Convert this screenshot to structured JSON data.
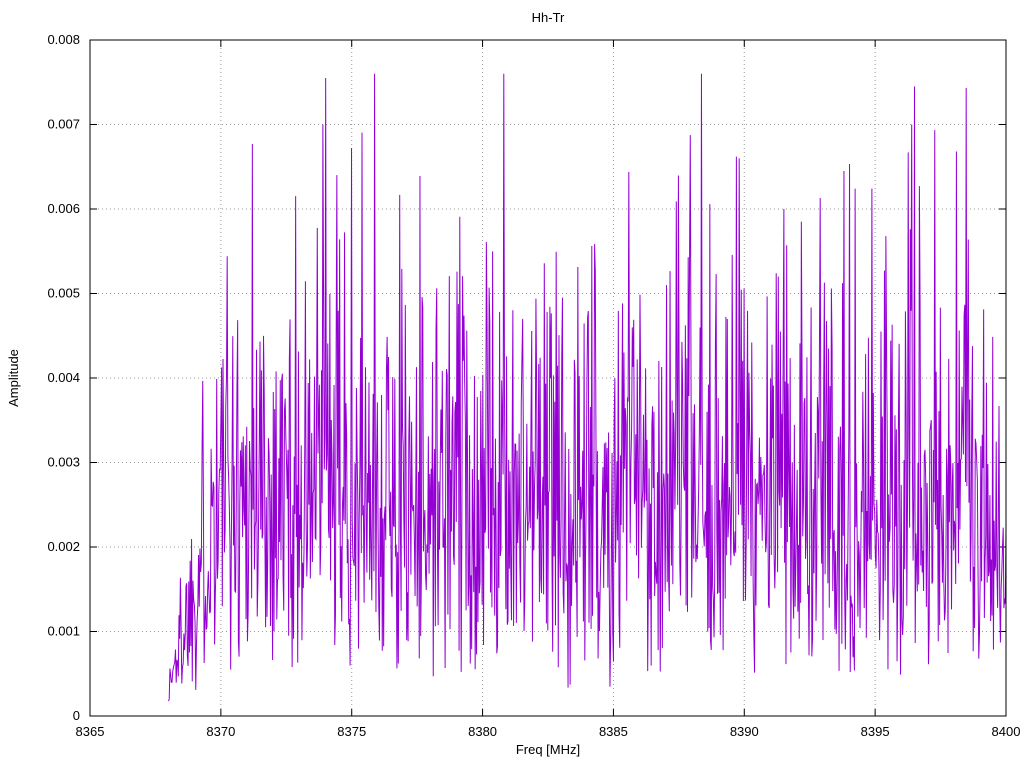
{
  "chart_data": {
    "type": "line",
    "title": "Hh-Tr",
    "xlabel": "Freq [MHz]",
    "ylabel": "Amplitude",
    "xlim": [
      8365,
      8400
    ],
    "ylim": [
      0,
      0.008
    ],
    "x_ticks": [
      8365,
      8370,
      8375,
      8380,
      8385,
      8390,
      8395,
      8400
    ],
    "x_tick_labels": [
      "8365",
      "8370",
      "8375",
      "8380",
      "8385",
      "8390",
      "8395",
      "8400"
    ],
    "y_ticks": [
      0,
      0.001,
      0.002,
      0.003,
      0.004,
      0.005,
      0.006,
      0.007,
      0.008
    ],
    "y_tick_labels": [
      "0",
      "0.001",
      "0.002",
      "0.003",
      "0.004",
      "0.005",
      "0.006",
      "0.007",
      "0.008"
    ],
    "grid": true,
    "legend": "none",
    "line_color": "#9400d3",
    "series_name": "Hh-Tr",
    "data_x_start": 8368.0,
    "data_x_end": 8400.0,
    "num_points": 1200,
    "noise_model": {
      "distribution": "rayleigh",
      "sigma": 0.002,
      "floor": 0.0002,
      "max": 0.0076,
      "seed": 1337,
      "ramp_in_end_x": 8369.8,
      "ramp_in_start_factor": 0.12,
      "taper_start_x": 8399.2,
      "taper_end_factor": 0.4
    },
    "notable_peaks": [
      {
        "x": 8374.0,
        "y": 0.00755
      },
      {
        "x": 8396.5,
        "y": 0.00745
      },
      {
        "x": 8396.4,
        "y": 0.007
      },
      {
        "x": 8371.2,
        "y": 0.00677
      },
      {
        "x": 8375.0,
        "y": 0.00672
      },
      {
        "x": 8398.1,
        "y": 0.00668
      },
      {
        "x": 8389.7,
        "y": 0.00662
      },
      {
        "x": 8389.8,
        "y": 0.0066
      },
      {
        "x": 8373.9,
        "y": 0.007
      },
      {
        "x": 8393.8,
        "y": 0.00645
      },
      {
        "x": 8385.6,
        "y": 0.00644
      },
      {
        "x": 8377.6,
        "y": 0.00639
      },
      {
        "x": 8392.9,
        "y": 0.00613
      },
      {
        "x": 8387.4,
        "y": 0.00609
      },
      {
        "x": 8391.5,
        "y": 0.006
      }
    ]
  }
}
